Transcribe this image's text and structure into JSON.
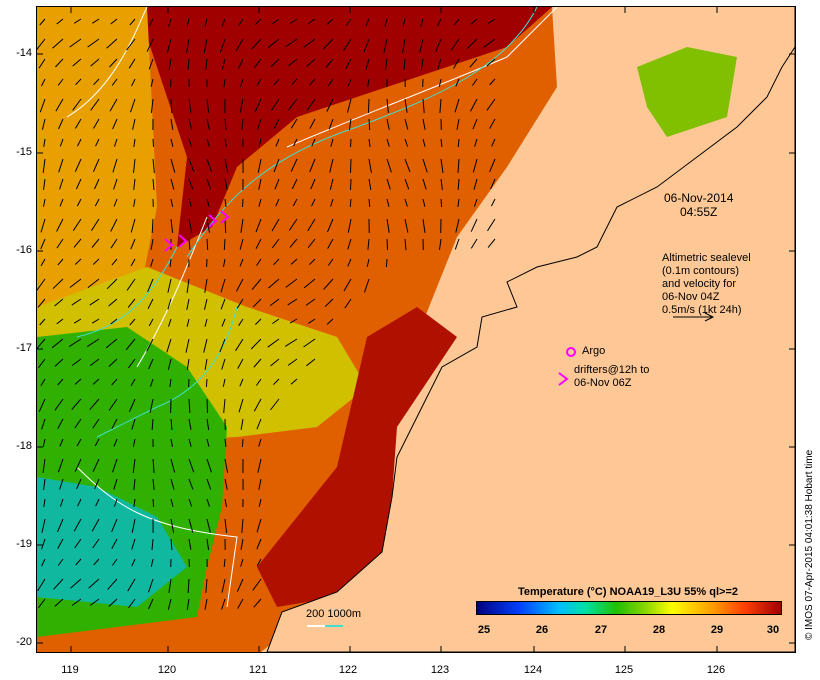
{
  "map": {
    "lat_ticks": [
      "-14",
      "-15",
      "-16",
      "-17",
      "-18",
      "-19",
      "-20"
    ],
    "lon_ticks": [
      "119",
      "120",
      "121",
      "122",
      "123",
      "124",
      "125",
      "126"
    ],
    "date": "06-Nov-2014",
    "time": "04:55Z",
    "altimetry_note": [
      "Altimetric sealevel",
      "(0.1m contours)",
      "and velocity for",
      "06-Nov 04Z",
      "0.5m/s (1kt 24h)"
    ],
    "argo_label": "Argo",
    "drifters_note": [
      "drifters@12h to",
      "06-Nov 06Z"
    ],
    "depth_legend": "200  1000m",
    "credit": "© IMOS 07-Apr-2015 04:01:38 Hobart time",
    "colorbar_title": "Temperature (°C) NOAA19_L3U 55% ql>=2",
    "colorbar_ticks": [
      "25",
      "26",
      "27",
      "28",
      "29",
      "30"
    ],
    "colors": {
      "land": "#fdc896",
      "warm": "#a00000",
      "contour_200m": "#ffffff",
      "contour_1000m": "#40e0d0",
      "drifter": "#ff00ff"
    }
  }
}
